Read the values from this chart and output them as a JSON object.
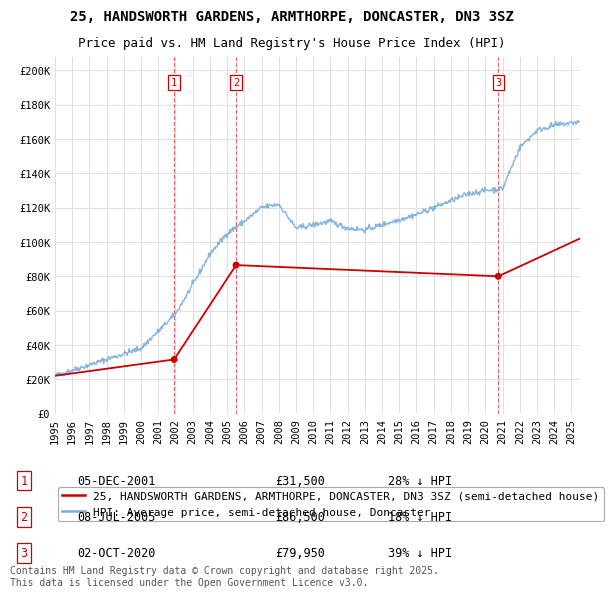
{
  "title": "25, HANDSWORTH GARDENS, ARMTHORPE, DONCASTER, DN3 3SZ",
  "subtitle": "Price paid vs. HM Land Registry's House Price Index (HPI)",
  "ylabel_ticks": [
    "£0",
    "£20K",
    "£40K",
    "£60K",
    "£80K",
    "£100K",
    "£120K",
    "£140K",
    "£160K",
    "£180K",
    "£200K"
  ],
  "ytick_values": [
    0,
    20000,
    40000,
    60000,
    80000,
    100000,
    120000,
    140000,
    160000,
    180000,
    200000
  ],
  "ylim": [
    0,
    208000
  ],
  "xlim_start": 1995.0,
  "xlim_end": 2025.5,
  "sale_decimal": [
    2001.92,
    2005.52,
    2020.75
  ],
  "sale_prices": [
    31500,
    86500,
    79950
  ],
  "sale_labels": [
    "1",
    "2",
    "3"
  ],
  "vline_color": "#cc0000",
  "house_line_color": "#cc0000",
  "hpi_line_color": "#7aaddb",
  "background_color": "#ffffff",
  "grid_color": "#e0e0e0",
  "legend_label_house": "25, HANDSWORTH GARDENS, ARMTHORPE, DONCASTER, DN3 3SZ (semi-detached house)",
  "legend_label_hpi": "HPI: Average price, semi-detached house, Doncaster",
  "table_data": [
    [
      "1",
      "05-DEC-2001",
      "£31,500",
      "28% ↓ HPI"
    ],
    [
      "2",
      "08-JUL-2005",
      "£86,500",
      "18% ↓ HPI"
    ],
    [
      "3",
      "02-OCT-2020",
      "£79,950",
      "39% ↓ HPI"
    ]
  ],
  "footer_text": "Contains HM Land Registry data © Crown copyright and database right 2025.\nThis data is licensed under the Open Government Licence v3.0.",
  "title_fontsize": 10,
  "subtitle_fontsize": 9,
  "tick_fontsize": 7.5,
  "legend_fontsize": 8,
  "table_fontsize": 8.5,
  "footer_fontsize": 7
}
